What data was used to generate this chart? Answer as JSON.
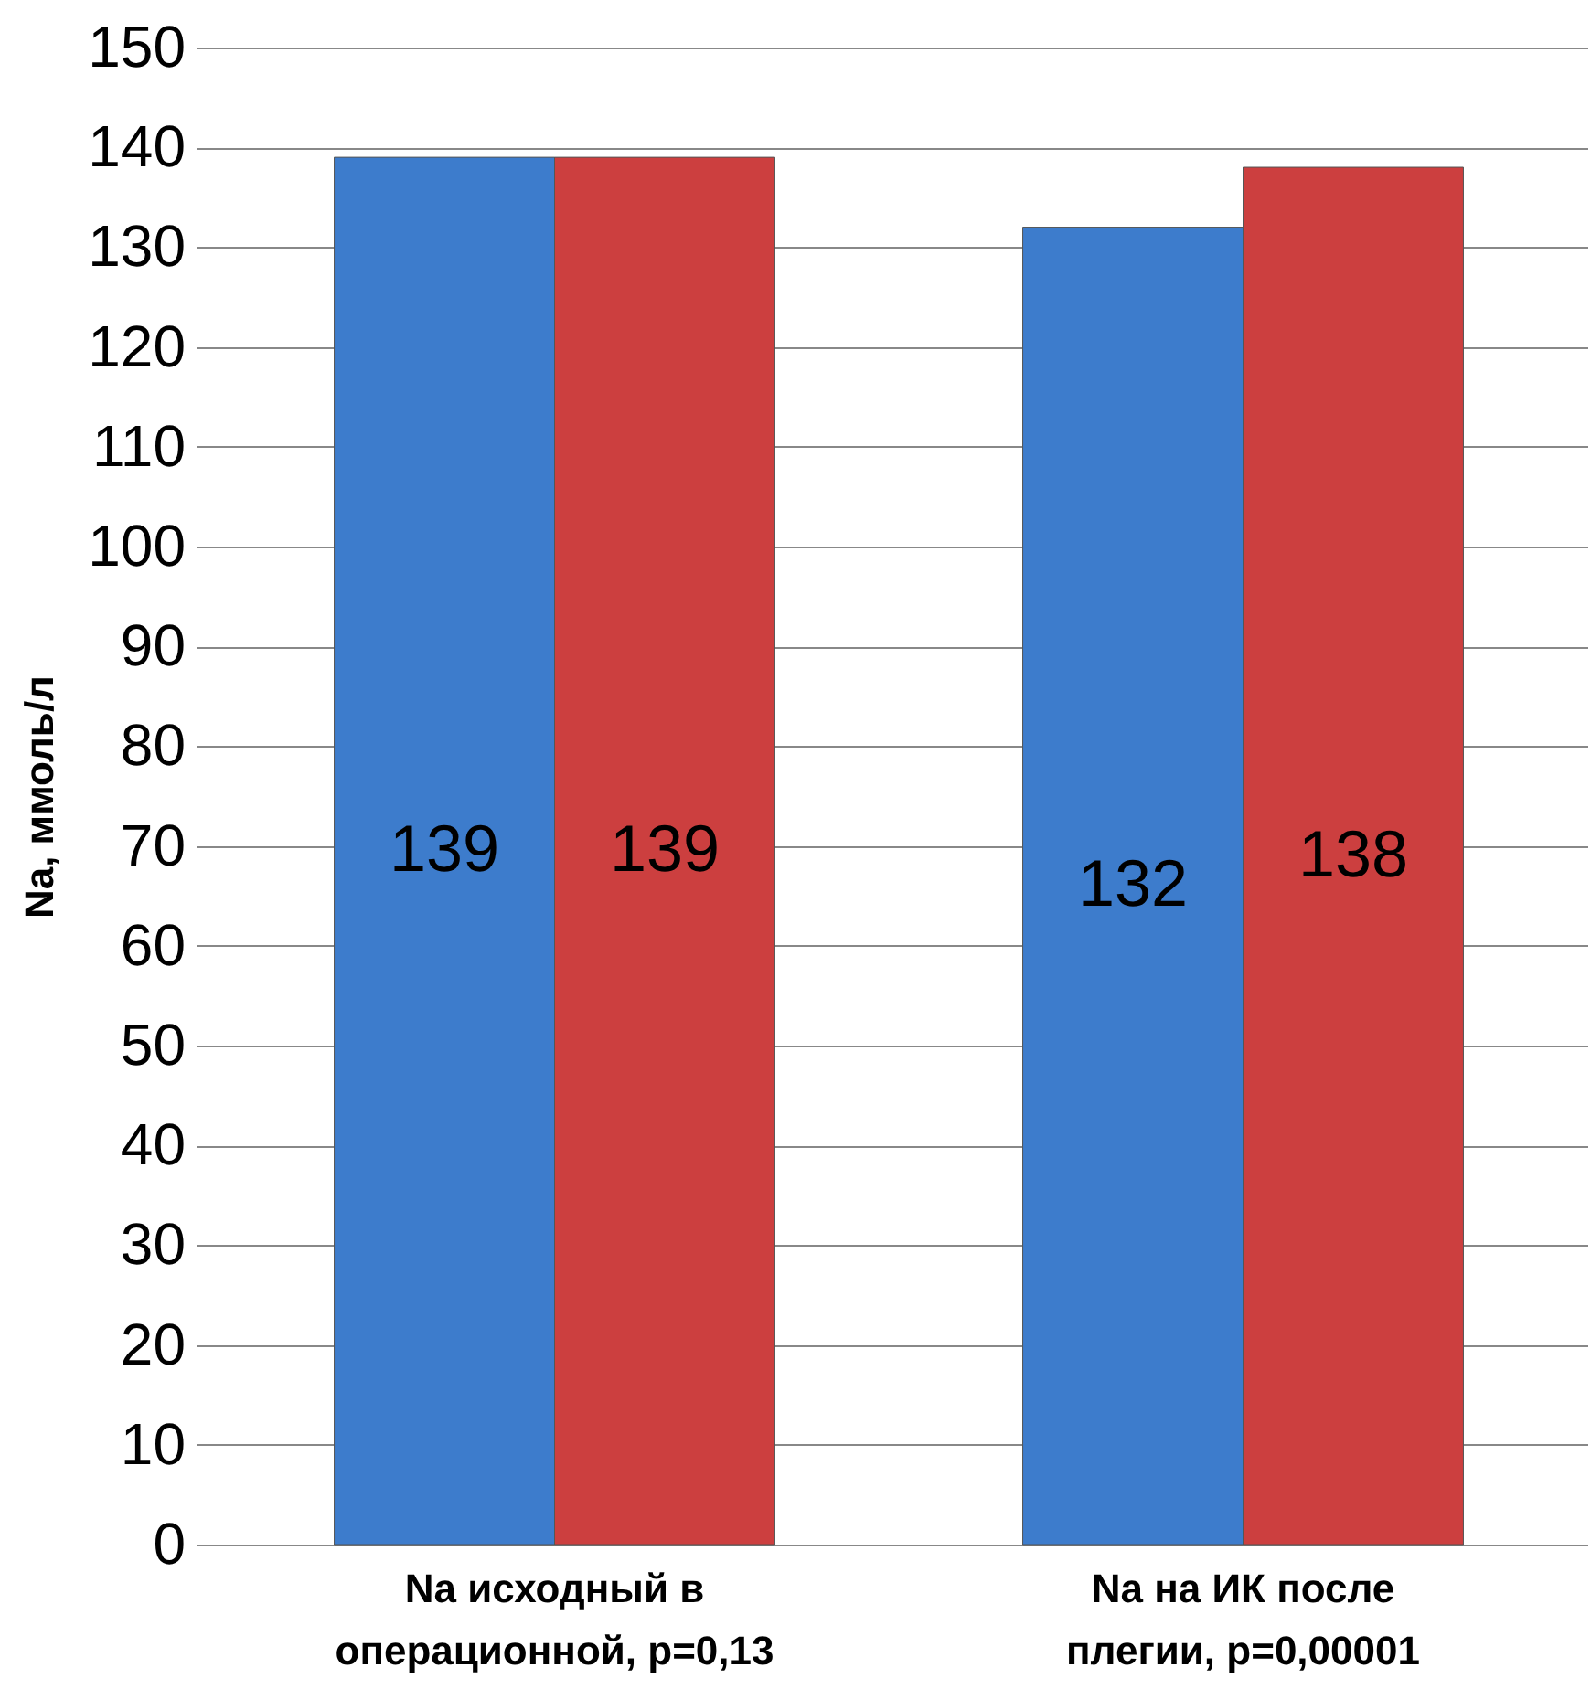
{
  "chart_data": {
    "type": "bar",
    "ylabel": "Na, ммоль/л",
    "categories": [
      "Na исходный в операционной, р=0,13",
      "Na на ИК после плегии, р=0,00001"
    ],
    "series": [
      {
        "color": "#3d7ccc",
        "values": [
          139,
          132
        ]
      },
      {
        "color": "#cc3f3f",
        "values": [
          139,
          138
        ]
      }
    ],
    "ylim": [
      0,
      150
    ],
    "yticks": [
      0,
      10,
      20,
      30,
      40,
      50,
      60,
      70,
      80,
      90,
      100,
      110,
      120,
      130,
      140,
      150
    ],
    "grid": "y",
    "data_labels": true
  }
}
